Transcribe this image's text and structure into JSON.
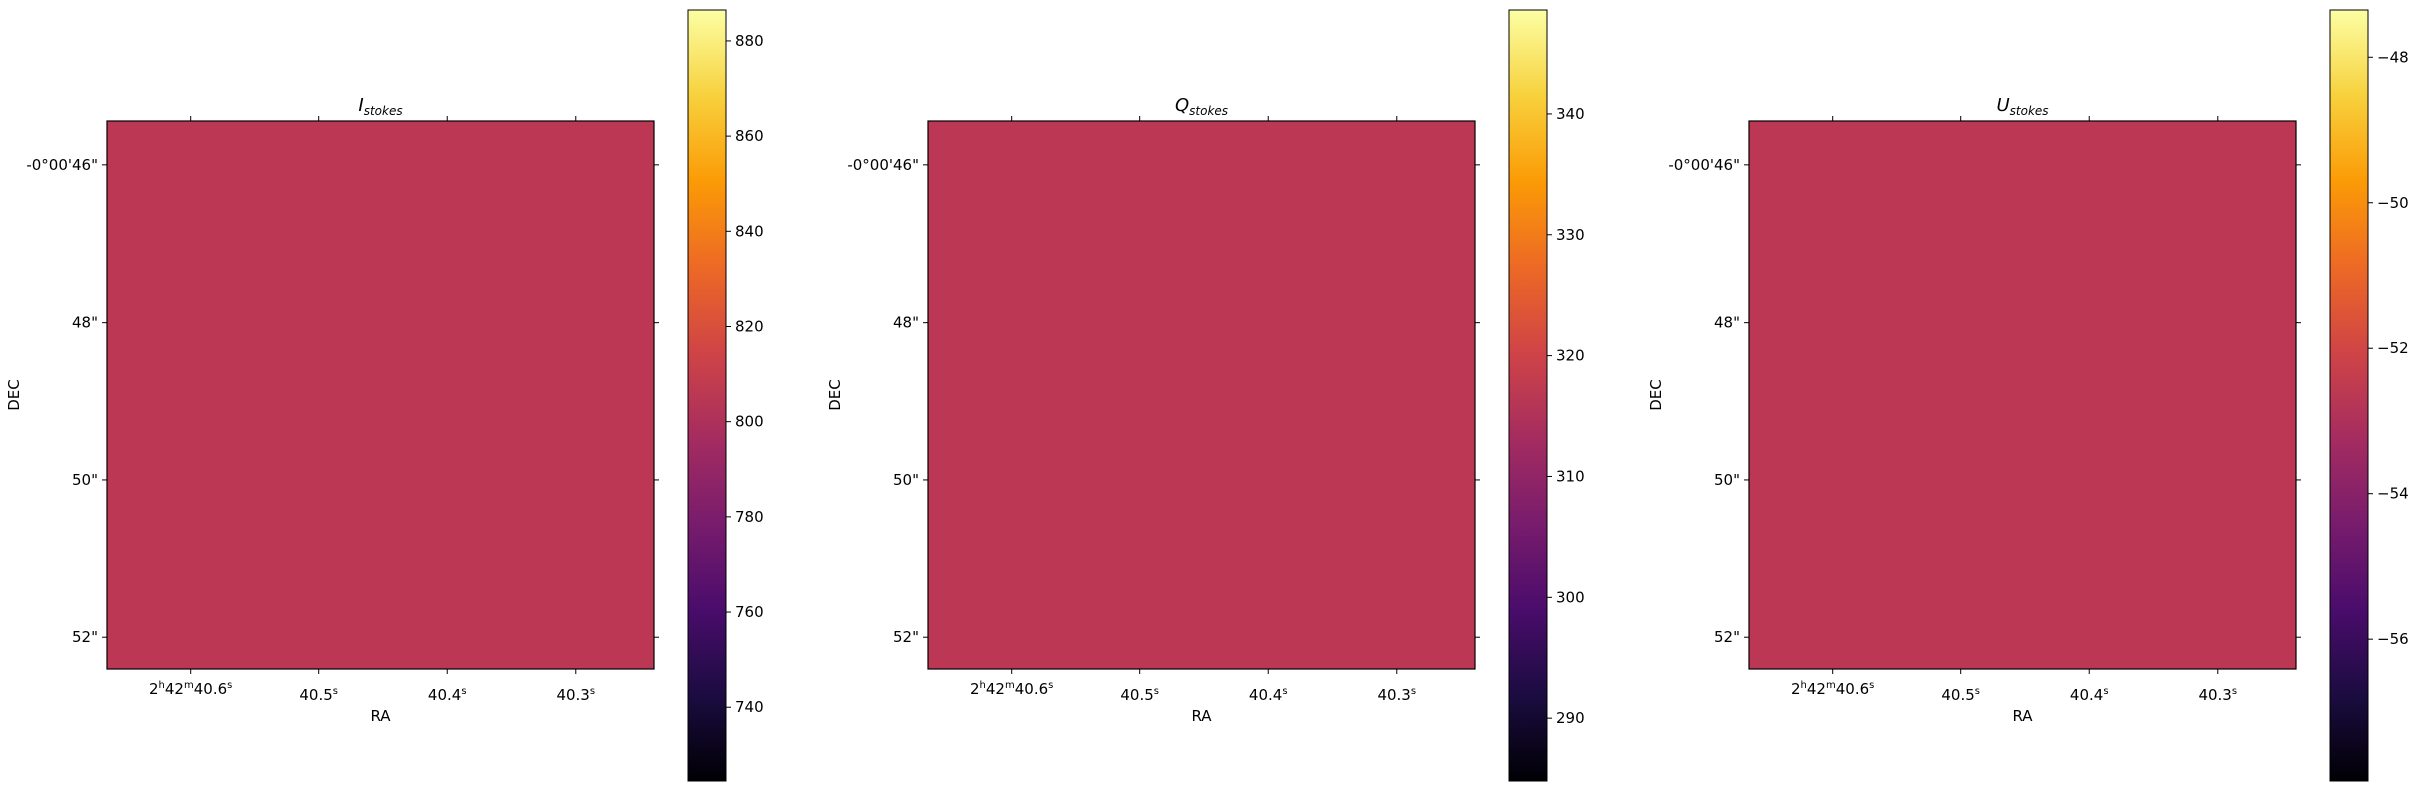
{
  "colors": {
    "image_fill": "#bc3754",
    "colormap": "inferno",
    "colormap_stops": [
      "#000004",
      "#1b0c41",
      "#4a0c6b",
      "#781c6d",
      "#a52c60",
      "#cf4446",
      "#ed6925",
      "#fb9b06",
      "#f7d13d",
      "#fcffa4"
    ]
  },
  "chart_data": [
    {
      "type": "heatmap",
      "title_main": "I",
      "title_sub": "stokes",
      "xlabel": "RA",
      "ylabel": "DEC",
      "xticks": [
        {
          "main": "2",
          "s1": "h",
          "mid": "42",
          "s2": "m",
          "tail": "40.6",
          "s3": "s"
        },
        {
          "main": "",
          "s1": "",
          "mid": "",
          "s2": "",
          "tail": "40.5",
          "s3": "s"
        },
        {
          "main": "",
          "s1": "",
          "mid": "",
          "s2": "",
          "tail": "40.4",
          "s3": "s"
        },
        {
          "main": "",
          "s1": "",
          "mid": "",
          "s2": "",
          "tail": "40.3",
          "s3": "s"
        }
      ],
      "yticks": [
        "-0°00'46\"",
        "48\"",
        "50\"",
        "52\""
      ],
      "colorbar": {
        "min": 724.5,
        "max": 886.5,
        "ticks": [
          740,
          760,
          780,
          800,
          820,
          840,
          860,
          880
        ],
        "tick_labels": [
          "740",
          "760",
          "780",
          "800",
          "820",
          "840",
          "860",
          "880"
        ]
      },
      "image_value": 805.5
    },
    {
      "type": "heatmap",
      "title_main": "Q",
      "title_sub": "stokes",
      "xlabel": "RA",
      "ylabel": "DEC",
      "xticks": [
        {
          "main": "2",
          "s1": "h",
          "mid": "42",
          "s2": "m",
          "tail": "40.6",
          "s3": "s"
        },
        {
          "main": "",
          "s1": "",
          "mid": "",
          "s2": "",
          "tail": "40.5",
          "s3": "s"
        },
        {
          "main": "",
          "s1": "",
          "mid": "",
          "s2": "",
          "tail": "40.4",
          "s3": "s"
        },
        {
          "main": "",
          "s1": "",
          "mid": "",
          "s2": "",
          "tail": "40.3",
          "s3": "s"
        }
      ],
      "yticks": [
        "-0°00'46\"",
        "48\"",
        "50\"",
        "52\""
      ],
      "colorbar": {
        "min": 284.8,
        "max": 348.6,
        "ticks": [
          290,
          300,
          310,
          320,
          330,
          340
        ],
        "tick_labels": [
          "290",
          "300",
          "310",
          "320",
          "330",
          "340"
        ]
      },
      "image_value": 316.7
    },
    {
      "type": "heatmap",
      "title_main": "U",
      "title_sub": "stokes",
      "xlabel": "RA",
      "ylabel": "DEC",
      "xticks": [
        {
          "main": "2",
          "s1": "h",
          "mid": "42",
          "s2": "m",
          "tail": "40.6",
          "s3": "s"
        },
        {
          "main": "",
          "s1": "",
          "mid": "",
          "s2": "",
          "tail": "40.5",
          "s3": "s"
        },
        {
          "main": "",
          "s1": "",
          "mid": "",
          "s2": "",
          "tail": "40.4",
          "s3": "s"
        },
        {
          "main": "",
          "s1": "",
          "mid": "",
          "s2": "",
          "tail": "40.3",
          "s3": "s"
        }
      ],
      "yticks": [
        "-0°00'46\"",
        "48\"",
        "50\"",
        "52\""
      ],
      "colorbar": {
        "min": -57.95,
        "max": -47.35,
        "ticks": [
          -56,
          -54,
          -52,
          -50,
          -48
        ],
        "tick_labels": [
          "−56",
          "−54",
          "−52",
          "−50",
          "−48"
        ]
      },
      "image_value": -52.65
    }
  ]
}
